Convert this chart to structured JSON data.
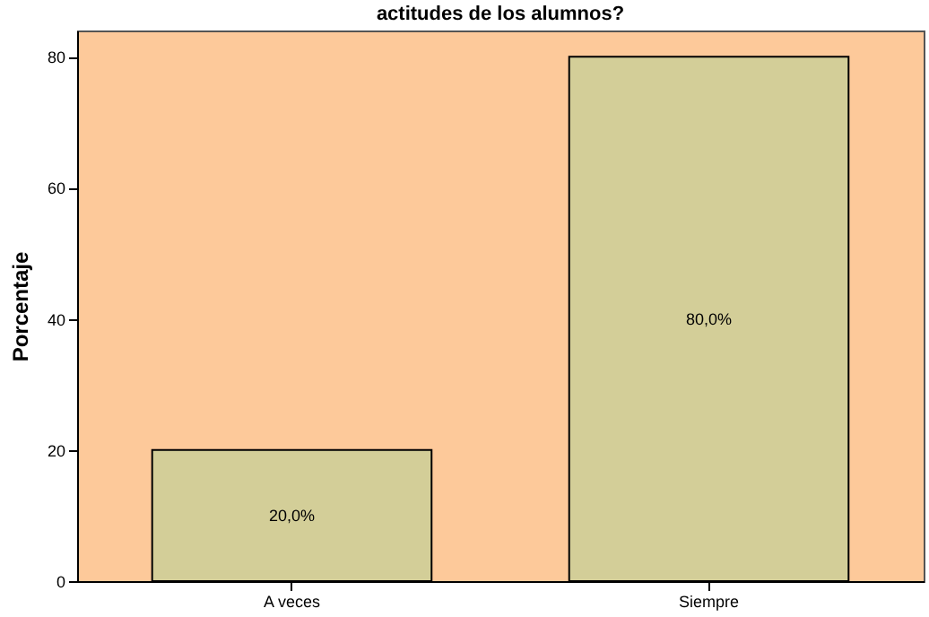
{
  "chart_data": {
    "type": "bar",
    "title": "actitudes de los alumnos?",
    "ylabel": "Porcentaje",
    "categories": [
      "A veces",
      "Siempre"
    ],
    "values": [
      20,
      80
    ],
    "color": "#d3ce98",
    "value_labels": [
      "20,0%",
      "80,0%"
    ],
    "ylim": [
      0,
      84
    ],
    "yticks": [
      0,
      20,
      40,
      60,
      80
    ],
    "grid": false
  }
}
